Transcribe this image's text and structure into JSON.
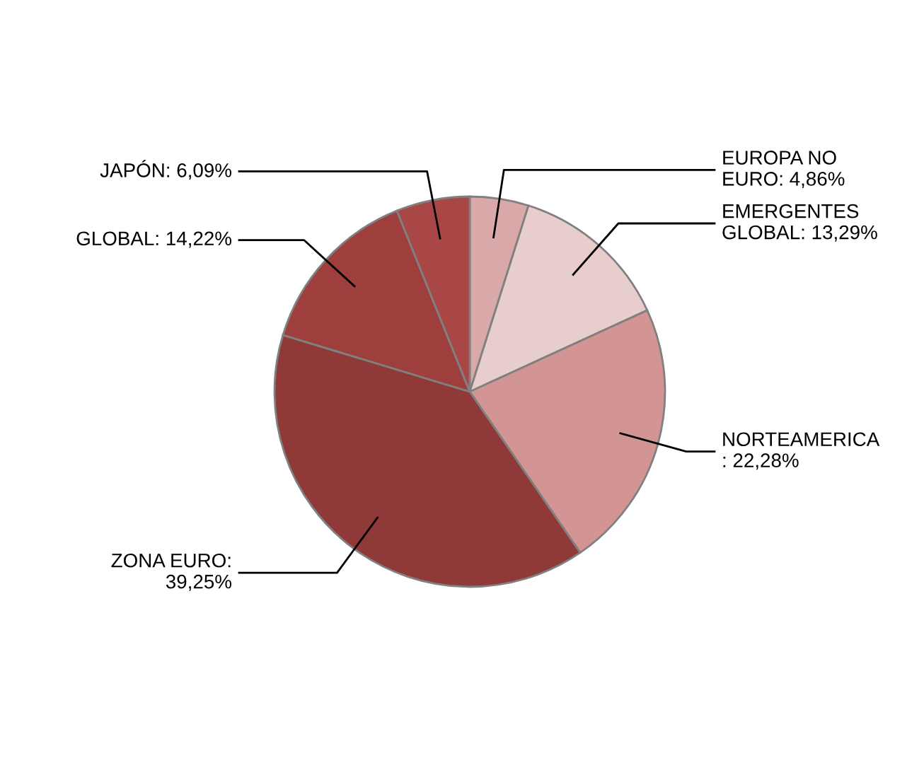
{
  "chart_data": {
    "type": "pie",
    "categories": [
      "EUROPA NO\nEURO: 4,86%",
      "EMERGENTES\nGLOBAL: 13,29%",
      "NORTEAMERICA\n: 22,28%",
      "ZONA EURO:\n39,25%",
      "GLOBAL: 14,22%",
      "JAPÓN: 6,09%"
    ],
    "values": [
      4.86,
      13.29,
      22.28,
      39.25,
      14.22,
      6.09
    ],
    "colors": [
      "#d9a9a9",
      "#e8cdcd",
      "#d39494",
      "#8f3a38",
      "#9e3f3d",
      "#a84745"
    ],
    "legend": false
  }
}
